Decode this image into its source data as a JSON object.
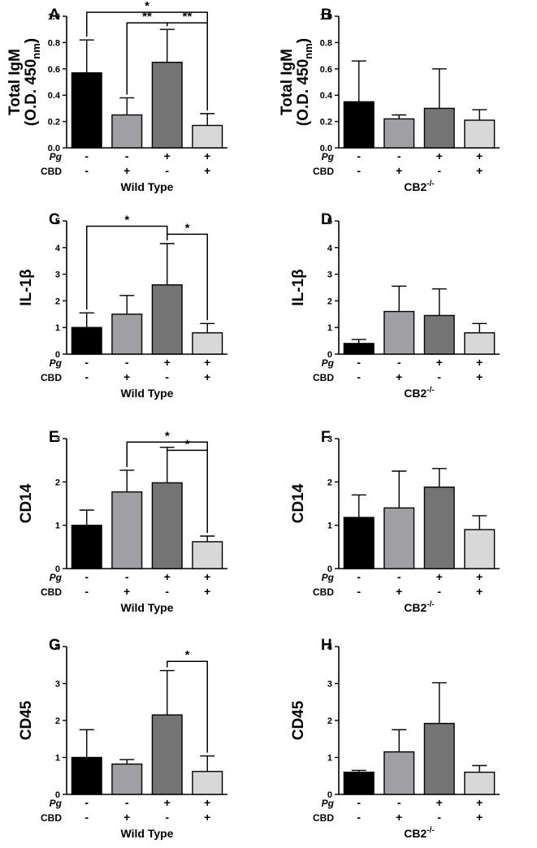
{
  "figure": {
    "rows": {
      "pg_label": "Pg",
      "cbd_label": "CBD"
    }
  },
  "chart_data": [
    {
      "panel": "A",
      "type": "bar",
      "group": "Wild Type",
      "group_sup": "",
      "ylabel_lines": [
        "Total IgM",
        "(O.D. 450",
        "nm",
        ")"
      ],
      "ylim": [
        0,
        1.0
      ],
      "yticks": [
        "0.0",
        "0.2",
        "0.4",
        "0.6",
        "0.8",
        "1.0"
      ],
      "pg": [
        "-",
        "-",
        "+",
        "+"
      ],
      "cbd": [
        "-",
        "+",
        "-",
        "+"
      ],
      "values": [
        0.57,
        0.25,
        0.65,
        0.17
      ],
      "errors": [
        0.25,
        0.13,
        0.25,
        0.09
      ],
      "colors": [
        "#000000",
        "#a0a0a4",
        "#747474",
        "#d8d8d8"
      ],
      "sig": [
        {
          "from": 0,
          "to": 3,
          "label": "*",
          "y": 1.03
        },
        {
          "from": 1,
          "to": 2,
          "label": "**",
          "y": 0.95
        },
        {
          "from": 2,
          "to": 3,
          "label": "**",
          "y": 0.95
        }
      ]
    },
    {
      "panel": "B",
      "type": "bar",
      "group": "CB2",
      "group_sup": "-/-",
      "ylabel_lines": [
        "Total IgM",
        "(O.D. 450",
        "nm",
        ")"
      ],
      "ylim": [
        0,
        1.0
      ],
      "yticks": [
        "0.0",
        "0.2",
        "0.4",
        "0.6",
        "0.8",
        "1.0"
      ],
      "pg": [
        "-",
        "-",
        "+",
        "+"
      ],
      "cbd": [
        "-",
        "+",
        "-",
        "+"
      ],
      "values": [
        0.35,
        0.22,
        0.3,
        0.21
      ],
      "errors": [
        0.31,
        0.03,
        0.3,
        0.08
      ],
      "colors": [
        "#000000",
        "#a0a0a4",
        "#747474",
        "#d8d8d8"
      ],
      "sig": []
    },
    {
      "panel": "C",
      "type": "bar",
      "group": "Wild Type",
      "group_sup": "",
      "ylabel_lines": [
        "IL-1β"
      ],
      "ylim": [
        0,
        5
      ],
      "yticks": [
        "0",
        "1",
        "2",
        "3",
        "4",
        "5"
      ],
      "pg": [
        "-",
        "-",
        "+",
        "+"
      ],
      "cbd": [
        "-",
        "+",
        "-",
        "+"
      ],
      "values": [
        1.0,
        1.5,
        2.6,
        0.8
      ],
      "errors": [
        0.55,
        0.7,
        1.55,
        0.35
      ],
      "colors": [
        "#000000",
        "#a0a0a4",
        "#747474",
        "#d8d8d8"
      ],
      "sig": [
        {
          "from": 0,
          "to": 2,
          "label": "*",
          "y": 4.8
        },
        {
          "from": 2,
          "to": 3,
          "label": "*",
          "y": 4.5
        }
      ]
    },
    {
      "panel": "D",
      "type": "bar",
      "group": "CB2",
      "group_sup": "-/-",
      "ylabel_lines": [
        "IL-1β"
      ],
      "ylim": [
        0,
        5
      ],
      "yticks": [
        "0",
        "1",
        "2",
        "3",
        "4",
        "5"
      ],
      "pg": [
        "-",
        "-",
        "+",
        "+"
      ],
      "cbd": [
        "-",
        "+",
        "-",
        "+"
      ],
      "values": [
        0.4,
        1.6,
        1.45,
        0.8
      ],
      "errors": [
        0.15,
        0.95,
        1.0,
        0.35
      ],
      "colors": [
        "#000000",
        "#a0a0a4",
        "#747474",
        "#d8d8d8"
      ],
      "sig": []
    },
    {
      "panel": "E",
      "type": "bar",
      "group": "Wild Type",
      "group_sup": "",
      "ylabel_lines": [
        "CD14"
      ],
      "ylim": [
        0,
        3
      ],
      "yticks": [
        "0",
        "1",
        "2",
        "3"
      ],
      "pg": [
        "-",
        "-",
        "+",
        "+"
      ],
      "cbd": [
        "-",
        "+",
        "-",
        "+"
      ],
      "values": [
        1.0,
        1.77,
        1.98,
        0.62
      ],
      "errors": [
        0.35,
        0.5,
        0.82,
        0.13
      ],
      "colors": [
        "#000000",
        "#a0a0a4",
        "#747474",
        "#d8d8d8"
      ],
      "sig": [
        {
          "from": 1,
          "to": 3,
          "label": "*",
          "y": 2.92
        },
        {
          "from": 2,
          "to": 3,
          "label": "*",
          "y": 2.73
        }
      ]
    },
    {
      "panel": "F",
      "type": "bar",
      "group": "CB2",
      "group_sup": "-/-",
      "ylabel_lines": [
        "CD14"
      ],
      "ylim": [
        0,
        3
      ],
      "yticks": [
        "0",
        "1",
        "2",
        "3"
      ],
      "pg": [
        "-",
        "-",
        "+",
        "+"
      ],
      "cbd": [
        "-",
        "+",
        "-",
        "+"
      ],
      "values": [
        1.18,
        1.4,
        1.88,
        0.9
      ],
      "errors": [
        0.52,
        0.85,
        0.43,
        0.32
      ],
      "colors": [
        "#000000",
        "#a0a0a4",
        "#747474",
        "#d8d8d8"
      ],
      "sig": []
    },
    {
      "panel": "G",
      "type": "bar",
      "group": "Wild Type",
      "group_sup": "",
      "ylabel_lines": [
        "CD45"
      ],
      "ylim": [
        0,
        4
      ],
      "yticks": [
        "0",
        "1",
        "2",
        "3",
        "4"
      ],
      "pg": [
        "-",
        "-",
        "+",
        "+"
      ],
      "cbd": [
        "-",
        "+",
        "-",
        "+"
      ],
      "values": [
        1.0,
        0.82,
        2.15,
        0.62
      ],
      "errors": [
        0.75,
        0.12,
        1.2,
        0.42
      ],
      "colors": [
        "#000000",
        "#a0a0a4",
        "#747474",
        "#d8d8d8"
      ],
      "sig": [
        {
          "from": 2,
          "to": 3,
          "label": "*",
          "y": 3.6
        }
      ]
    },
    {
      "panel": "H",
      "type": "bar",
      "group": "CB2",
      "group_sup": "-/-",
      "ylabel_lines": [
        "CD45"
      ],
      "ylim": [
        0,
        4
      ],
      "yticks": [
        "0",
        "1",
        "2",
        "3",
        "4"
      ],
      "pg": [
        "-",
        "-",
        "+",
        "+"
      ],
      "cbd": [
        "-",
        "+",
        "-",
        "+"
      ],
      "values": [
        0.6,
        1.15,
        1.92,
        0.6
      ],
      "errors": [
        0.05,
        0.6,
        1.1,
        0.18
      ],
      "colors": [
        "#000000",
        "#a0a0a4",
        "#747474",
        "#d8d8d8"
      ],
      "sig": []
    }
  ]
}
